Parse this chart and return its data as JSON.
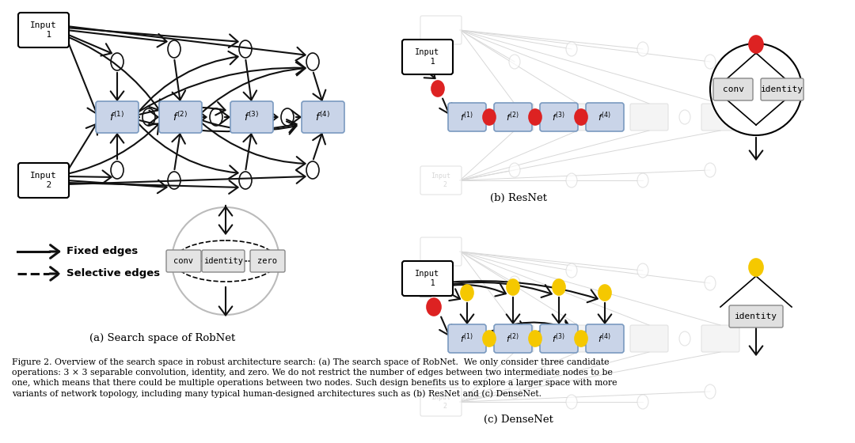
{
  "caption_a": "(a) Search space of RobNet",
  "caption_b": "(b) ResNet",
  "caption_c": "(c) DenseNet",
  "figure_caption": "Figure 2. Overview of the search space in robust architecture search: (a) The search space of RobNet.  We only consider three candidate\noperations: 3 × 3 separable convolution, identity, and zero. We do not restrict the number of edges between two intermediate nodes to be\none, which means that there could be multiple operations between two nodes. Such design benefits us to explore a larger space with more\nvariants of network topology, including many typical human-designed architectures such as (b) ResNet and (c) DenseNet.",
  "legend_fixed": "Fixed edges",
  "legend_selective": "Selective edges",
  "box_color": "#c9d4e8",
  "box_edge_color": "#7a9ac0",
  "arrow_color": "#111111",
  "red_color": "#dd2222",
  "yellow_color": "#f5c800",
  "light_gray": "#cccccc",
  "ghost_color": "#d8d8d8"
}
